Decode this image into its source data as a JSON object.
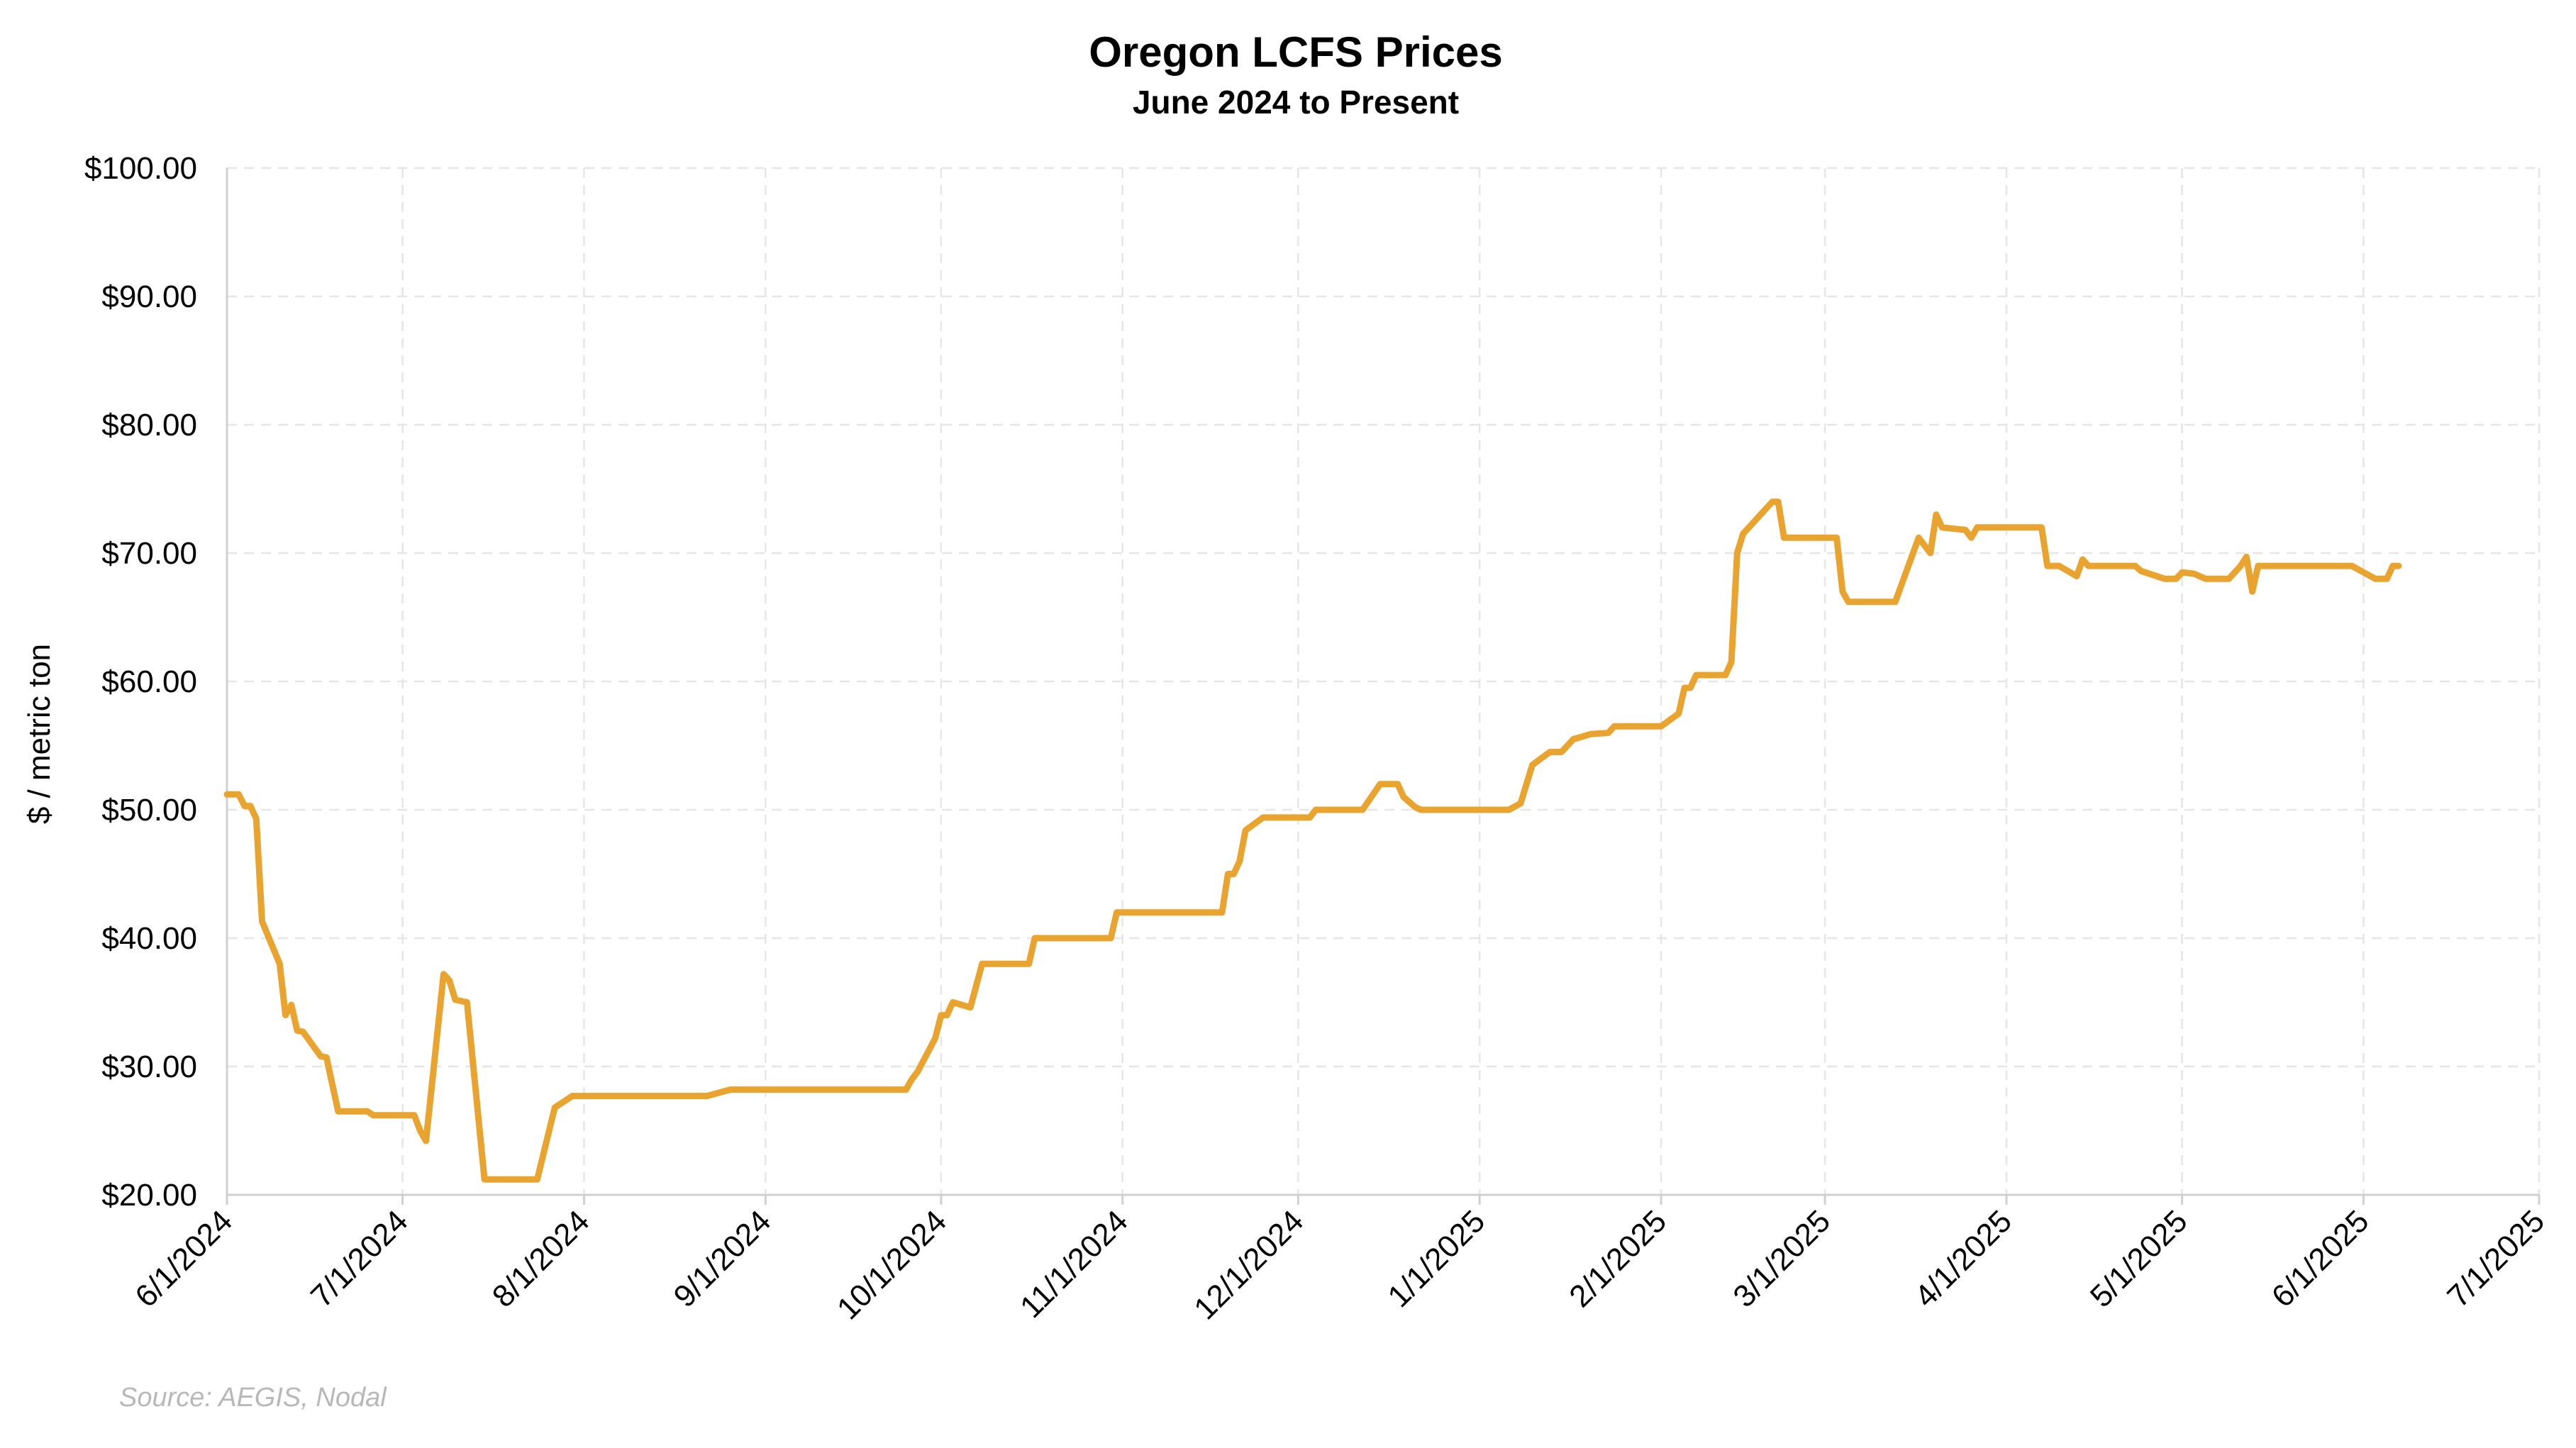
{
  "chart_data": {
    "type": "line",
    "title": "Oregon LCFS Prices",
    "subtitle": "June 2024 to Present",
    "ylabel": "$ / metric ton",
    "xlabel": "",
    "source": "Source: AEGIS, Nodal",
    "ylim": [
      20,
      100
    ],
    "xlim": [
      "2024-06-01",
      "2025-07-01"
    ],
    "y_ticks": [
      {
        "value": 100,
        "label": "$100.00"
      },
      {
        "value": 90,
        "label": "$90.00"
      },
      {
        "value": 80,
        "label": "$80.00"
      },
      {
        "value": 70,
        "label": "$70.00"
      },
      {
        "value": 60,
        "label": "$60.00"
      },
      {
        "value": 50,
        "label": "$50.00"
      },
      {
        "value": 40,
        "label": "$40.00"
      },
      {
        "value": 30,
        "label": "$30.00"
      },
      {
        "value": 20,
        "label": "$20.00"
      }
    ],
    "x_ticks": [
      {
        "date": "2024-06-01",
        "label": "6/1/2024"
      },
      {
        "date": "2024-07-01",
        "label": "7/1/2024"
      },
      {
        "date": "2024-08-01",
        "label": "8/1/2024"
      },
      {
        "date": "2024-09-01",
        "label": "9/1/2024"
      },
      {
        "date": "2024-10-01",
        "label": "10/1/2024"
      },
      {
        "date": "2024-11-01",
        "label": "11/1/2024"
      },
      {
        "date": "2024-12-01",
        "label": "12/1/2024"
      },
      {
        "date": "2025-01-01",
        "label": "1/1/2025"
      },
      {
        "date": "2025-02-01",
        "label": "2/1/2025"
      },
      {
        "date": "2025-03-01",
        "label": "3/1/2025"
      },
      {
        "date": "2025-04-01",
        "label": "4/1/2025"
      },
      {
        "date": "2025-05-01",
        "label": "5/1/2025"
      },
      {
        "date": "2025-06-01",
        "label": "6/1/2025"
      },
      {
        "date": "2025-07-01",
        "label": "7/1/2025"
      }
    ],
    "grid": true,
    "legend": "none",
    "series": [
      {
        "color": "#E9A430",
        "points": [
          [
            "2024-06-01",
            51.2
          ],
          [
            "2024-06-03",
            51.2
          ],
          [
            "2024-06-04",
            50.3
          ],
          [
            "2024-06-05",
            50.3
          ],
          [
            "2024-06-06",
            49.3
          ],
          [
            "2024-06-07",
            41.3
          ],
          [
            "2024-06-10",
            38.0
          ],
          [
            "2024-06-11",
            34.0
          ],
          [
            "2024-06-12",
            34.8
          ],
          [
            "2024-06-13",
            32.8
          ],
          [
            "2024-06-14",
            32.7
          ],
          [
            "2024-06-17",
            30.8
          ],
          [
            "2024-06-18",
            30.7
          ],
          [
            "2024-06-20",
            26.5
          ],
          [
            "2024-06-25",
            26.5
          ],
          [
            "2024-06-26",
            26.2
          ],
          [
            "2024-07-03",
            26.2
          ],
          [
            "2024-07-04",
            25.0
          ],
          [
            "2024-07-05",
            24.2
          ],
          [
            "2024-07-08",
            37.2
          ],
          [
            "2024-07-09",
            36.7
          ],
          [
            "2024-07-10",
            35.2
          ],
          [
            "2024-07-12",
            35.0
          ],
          [
            "2024-07-15",
            21.2
          ],
          [
            "2024-07-24",
            21.2
          ],
          [
            "2024-07-27",
            26.8
          ],
          [
            "2024-07-30",
            27.7
          ],
          [
            "2024-08-01",
            27.7
          ],
          [
            "2024-08-22",
            27.7
          ],
          [
            "2024-08-26",
            28.2
          ],
          [
            "2024-09-25",
            28.2
          ],
          [
            "2024-09-26",
            29.0
          ],
          [
            "2024-09-27",
            29.6
          ],
          [
            "2024-09-30",
            32.2
          ],
          [
            "2024-10-01",
            34.0
          ],
          [
            "2024-10-02",
            34.0
          ],
          [
            "2024-10-03",
            35.0
          ],
          [
            "2024-10-06",
            34.6
          ],
          [
            "2024-10-08",
            38.0
          ],
          [
            "2024-10-16",
            38.0
          ],
          [
            "2024-10-17",
            40.0
          ],
          [
            "2024-10-30",
            40.0
          ],
          [
            "2024-10-31",
            42.0
          ],
          [
            "2024-11-18",
            42.0
          ],
          [
            "2024-11-19",
            45.0
          ],
          [
            "2024-11-20",
            45.0
          ],
          [
            "2024-11-21",
            46.0
          ],
          [
            "2024-11-22",
            48.4
          ],
          [
            "2024-11-25",
            49.4
          ],
          [
            "2024-12-03",
            49.4
          ],
          [
            "2024-12-04",
            50.0
          ],
          [
            "2024-12-12",
            50.0
          ],
          [
            "2024-12-15",
            52.0
          ],
          [
            "2024-12-18",
            52.0
          ],
          [
            "2024-12-19",
            51.0
          ],
          [
            "2024-12-21",
            50.2
          ],
          [
            "2024-12-22",
            50.0
          ],
          [
            "2025-01-06",
            50.0
          ],
          [
            "2025-01-08",
            50.5
          ],
          [
            "2025-01-10",
            53.5
          ],
          [
            "2025-01-13",
            54.5
          ],
          [
            "2025-01-15",
            54.5
          ],
          [
            "2025-01-17",
            55.5
          ],
          [
            "2025-01-20",
            55.9
          ],
          [
            "2025-01-23",
            56.0
          ],
          [
            "2025-01-24",
            56.5
          ],
          [
            "2025-02-01",
            56.5
          ],
          [
            "2025-02-04",
            57.5
          ],
          [
            "2025-02-05",
            59.5
          ],
          [
            "2025-02-06",
            59.5
          ],
          [
            "2025-02-07",
            60.5
          ],
          [
            "2025-02-12",
            60.5
          ],
          [
            "2025-02-13",
            61.5
          ],
          [
            "2025-02-14",
            70.0
          ],
          [
            "2025-02-15",
            71.5
          ],
          [
            "2025-02-20",
            74.0
          ],
          [
            "2025-02-21",
            74.0
          ],
          [
            "2025-02-22",
            71.2
          ],
          [
            "2025-03-03",
            71.2
          ],
          [
            "2025-03-04",
            67.0
          ],
          [
            "2025-03-05",
            66.2
          ],
          [
            "2025-03-13",
            66.2
          ],
          [
            "2025-03-17",
            71.2
          ],
          [
            "2025-03-19",
            70.0
          ],
          [
            "2025-03-20",
            73.0
          ],
          [
            "2025-03-21",
            72.0
          ],
          [
            "2025-03-25",
            71.8
          ],
          [
            "2025-03-26",
            71.2
          ],
          [
            "2025-03-27",
            72.0
          ],
          [
            "2025-04-07",
            72.0
          ],
          [
            "2025-04-08",
            69.0
          ],
          [
            "2025-04-10",
            69.0
          ],
          [
            "2025-04-13",
            68.2
          ],
          [
            "2025-04-14",
            69.5
          ],
          [
            "2025-04-15",
            69.0
          ],
          [
            "2025-04-23",
            69.0
          ],
          [
            "2025-04-24",
            68.6
          ],
          [
            "2025-04-28",
            68.0
          ],
          [
            "2025-04-30",
            68.0
          ],
          [
            "2025-05-01",
            68.5
          ],
          [
            "2025-05-03",
            68.4
          ],
          [
            "2025-05-05",
            68.0
          ],
          [
            "2025-05-09",
            68.0
          ],
          [
            "2025-05-11",
            69.0
          ],
          [
            "2025-05-12",
            69.7
          ],
          [
            "2025-05-13",
            67.0
          ],
          [
            "2025-05-14",
            69.0
          ],
          [
            "2025-05-30",
            69.0
          ],
          [
            "2025-06-03",
            68.0
          ],
          [
            "2025-06-05",
            68.0
          ],
          [
            "2025-06-06",
            69.0
          ],
          [
            "2025-06-07",
            69.0
          ]
        ]
      }
    ]
  }
}
